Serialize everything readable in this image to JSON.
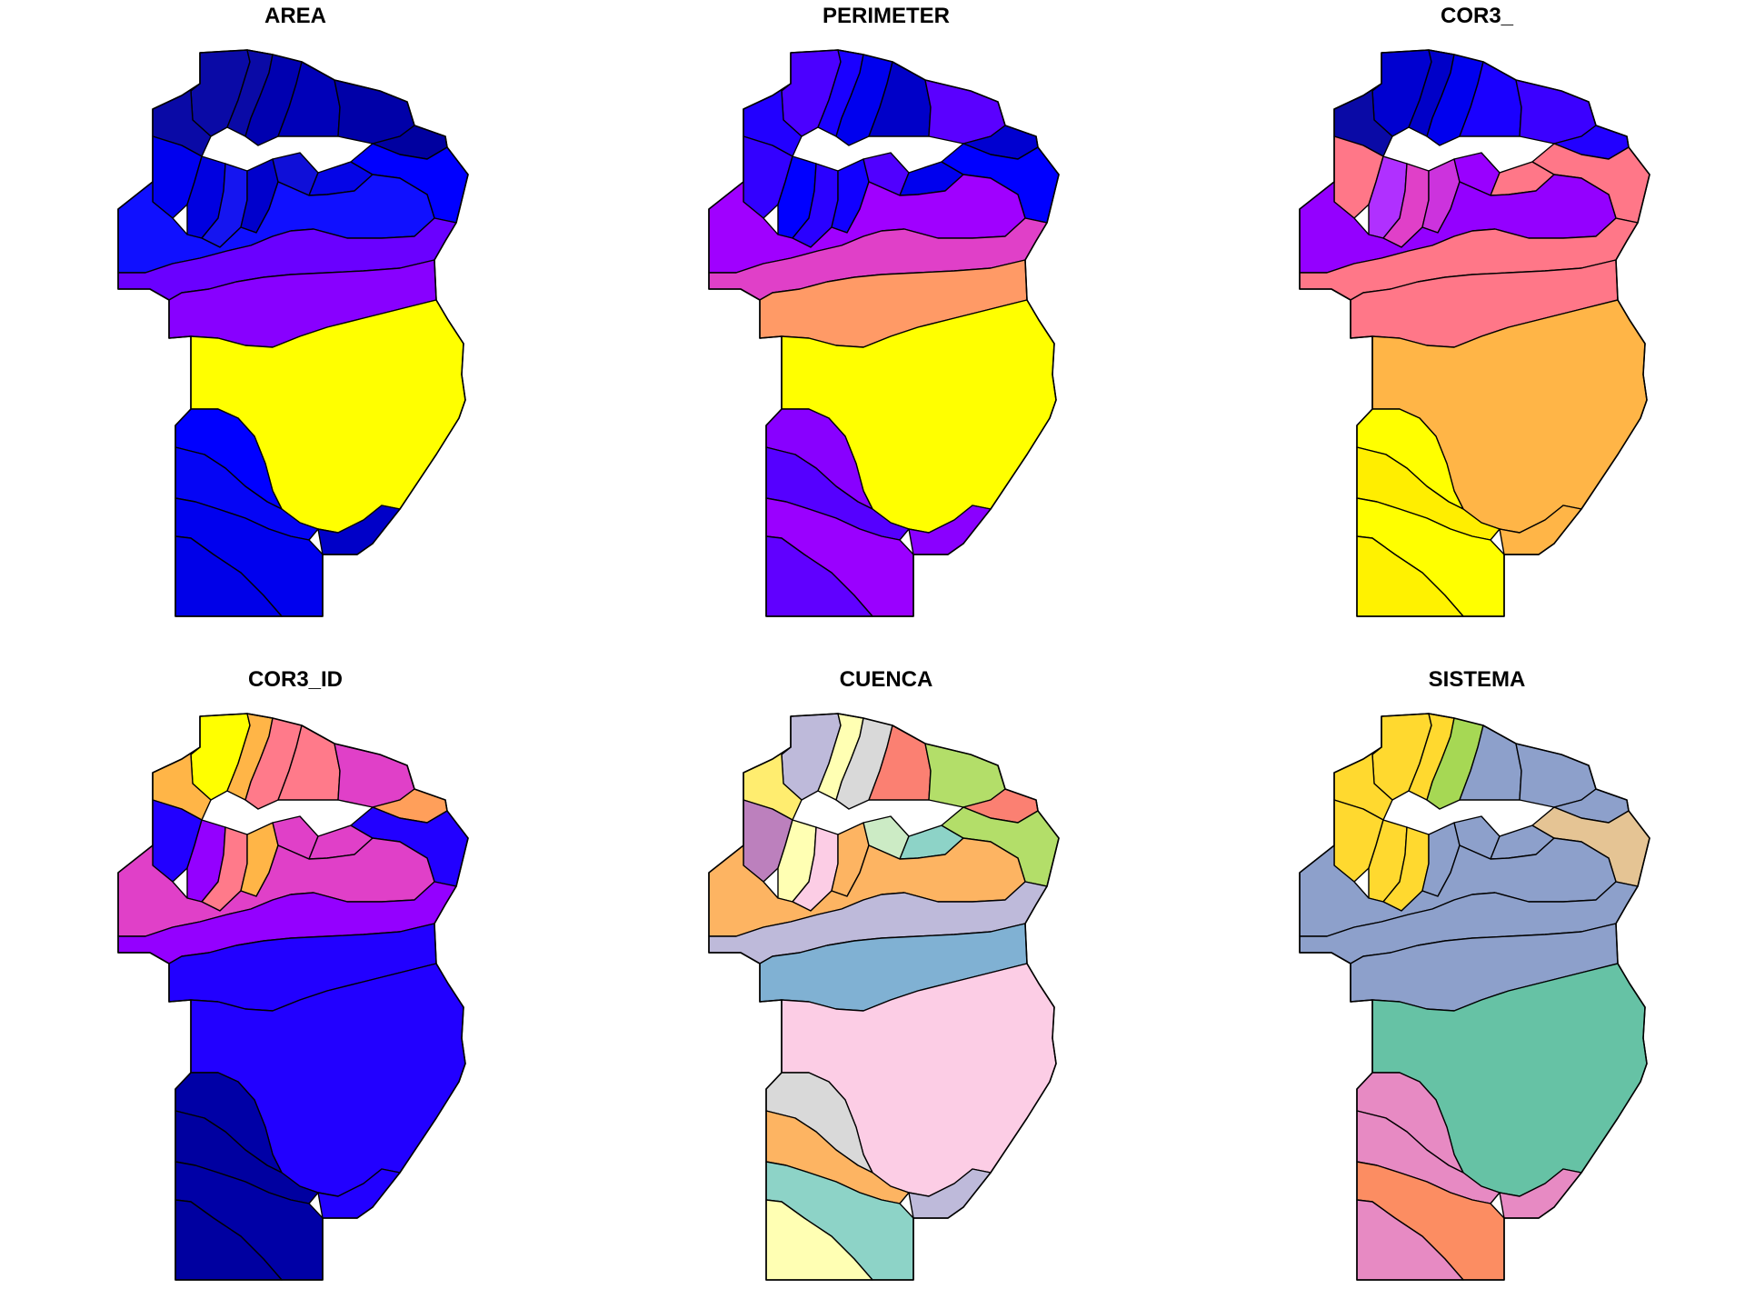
{
  "figure": {
    "panels": [
      {
        "title": "AREA",
        "colors": {
          "north": [
            "#0a0aa6",
            "#0a0aa6",
            "#0000b0",
            "#0000b8",
            "#0000a8",
            "#0a0aa6",
            "#0000a0"
          ],
          "upper": [
            "#0000ee",
            "#0000e0",
            "#1515f0",
            "#0000cc",
            "#0f0fd8",
            "#0505e6",
            "#0000ff"
          ],
          "band1": "#1010ff",
          "band2": "#6a00ff",
          "band3": "#8800ff",
          "big": "#ffff00",
          "south": [
            "#0000ff",
            "#0505f5",
            "#0000ee",
            "#0000e8"
          ],
          "tail": "#0000c8"
        }
      },
      {
        "title": "PERIMETER",
        "colors": {
          "north": [
            "#4b00ff",
            "#1a00ff",
            "#0000ee",
            "#0000c8",
            "#5a00ff",
            "#2200ff",
            "#0000d0"
          ],
          "upper": [
            "#3300ff",
            "#0000ff",
            "#2a00ff",
            "#1100ff",
            "#5000ff",
            "#0000ee",
            "#0000ff"
          ],
          "band1": "#a000ff",
          "band2": "#e040c8",
          "band3": "#ff9a66",
          "big": "#ffff00",
          "south": [
            "#8800ff",
            "#5500ff",
            "#9a00ff",
            "#6000ff"
          ],
          "tail": "#8a00ff"
        }
      },
      {
        "title": "COR3_",
        "colors": {
          "north": [
            "#0000d0",
            "#0000c8",
            "#0000ee",
            "#1a00ff",
            "#3b00ff",
            "#0a0aa6",
            "#2200ff"
          ],
          "upper": [
            "#ff7788",
            "#b030ff",
            "#e040c8",
            "#cc33dd",
            "#9900ff",
            "#ff7788",
            "#ff7788"
          ],
          "band1": "#9400ff",
          "band2": "#ff7788",
          "band3": "#ff7788",
          "big": "#ffb547",
          "south": [
            "#ffff00",
            "#ffee00",
            "#ffff00",
            "#fff200"
          ],
          "tail": "#ffb547"
        }
      },
      {
        "title": "COR3_ID",
        "colors": {
          "north": [
            "#ffff00",
            "#ffb547",
            "#ff7a8a",
            "#ff7a8a",
            "#e040c8",
            "#ffb547",
            "#ff9f5a"
          ],
          "upper": [
            "#2200ff",
            "#9400ff",
            "#ff7a8a",
            "#ffb547",
            "#e040c8",
            "#e040c8",
            "#2200ff"
          ],
          "band1": "#e040c8",
          "band2": "#9400ff",
          "band3": "#2200ff",
          "big": "#2200ff",
          "south": [
            "#0000a6",
            "#0000a0",
            "#0000a6",
            "#0000a0"
          ],
          "tail": "#2200ff"
        }
      },
      {
        "title": "CUENCA",
        "colors": {
          "north": [
            "#bebada",
            "#ffffb3",
            "#d9d9d9",
            "#fb8072",
            "#b3de69",
            "#ffed6f",
            "#fb8072"
          ],
          "upper": [
            "#bc80bd",
            "#ffffb3",
            "#fccde5",
            "#fdb462",
            "#ccebc5",
            "#8dd3c7",
            "#b3de69"
          ],
          "band1": "#fdb462",
          "band2": "#bebada",
          "band3": "#80b1d3",
          "big": "#fccde5",
          "south": [
            "#d9d9d9",
            "#fdb462",
            "#8dd3c7",
            "#ffffb3"
          ],
          "tail": "#bebada"
        }
      },
      {
        "title": "SISTEMA",
        "colors": {
          "north": [
            "#ffd92f",
            "#ffd92f",
            "#a6d854",
            "#8da0cb",
            "#8da0cb",
            "#ffd92f",
            "#8da0cb"
          ],
          "upper": [
            "#ffd92f",
            "#ffd92f",
            "#ffd92f",
            "#8da0cb",
            "#8da0cb",
            "#8da0cb",
            "#e5c494"
          ],
          "band1": "#8da0cb",
          "band2": "#8da0cb",
          "band3": "#8da0cb",
          "big": "#66c2a5",
          "south": [
            "#e78ac3",
            "#e78ac3",
            "#fc8d62",
            "#e78ac3"
          ],
          "tail": "#e78ac3"
        }
      }
    ]
  }
}
